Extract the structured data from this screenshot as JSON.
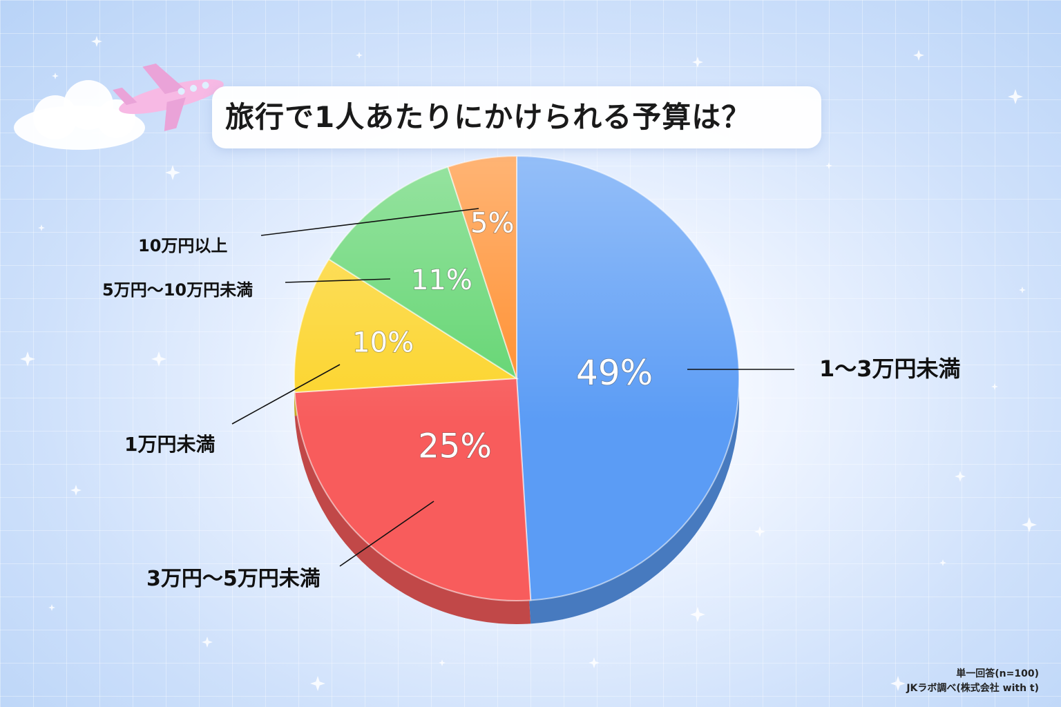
{
  "chart_data": {
    "type": "pie",
    "title": "旅行で1人あたりにかけられる予算は？",
    "categories": [
      "1〜3万円未満",
      "3万円〜5万円未満",
      "1万円未満",
      "5万円〜10万円未満",
      "10万円以上"
    ],
    "values": [
      49,
      25,
      10,
      11,
      5
    ],
    "value_labels": [
      "49%",
      "25%",
      "10%",
      "11%",
      "5%"
    ],
    "colors": [
      "#5b9cf5",
      "#f85c5c",
      "#fcd42a",
      "#5fd46e",
      "#ff8c2a"
    ],
    "legend": "none",
    "grid": false
  },
  "notes": {
    "line1": "単一回答(n=100)",
    "line2": "JKラボ調べ(株式会社 with t)"
  },
  "decor_icons": [
    "cloud-icon",
    "airplane-icon",
    "sparkle-icon"
  ]
}
